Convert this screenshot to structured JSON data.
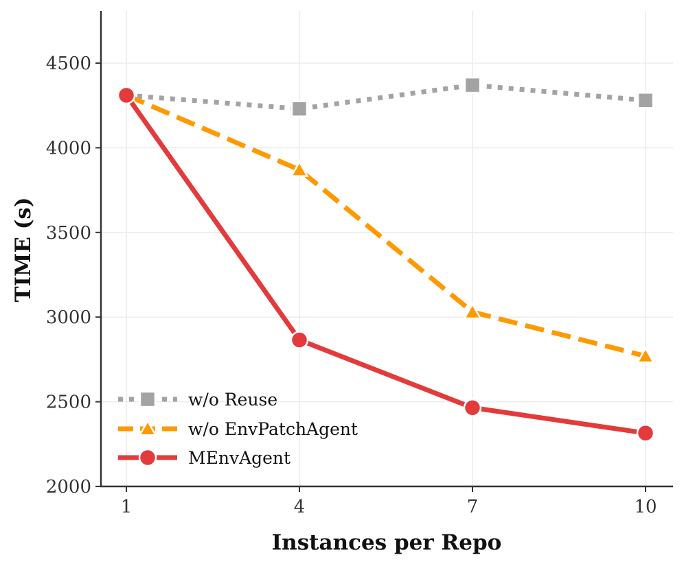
{
  "chart_data": {
    "type": "line",
    "title": "",
    "xlabel": "Instances per Repo",
    "ylabel": "TIME (s)",
    "x": [
      1,
      4,
      7,
      10
    ],
    "x_tick_labels": [
      "1",
      "4",
      "7",
      "10"
    ],
    "ylim": [
      2000,
      4800
    ],
    "y_ticks": [
      2000,
      2500,
      3000,
      3500,
      4000,
      4500
    ],
    "y_tick_labels": [
      "2000",
      "2500",
      "3000",
      "3500",
      "4000",
      "4500"
    ],
    "grid": true,
    "legend_position": "lower-left",
    "series": [
      {
        "name": "w/o Reuse",
        "values": [
          4310,
          4230,
          4370,
          4280
        ],
        "color": "#a3a3a3",
        "line_style": "dotted",
        "marker": "square"
      },
      {
        "name": "w/o EnvPatchAgent",
        "values": [
          4310,
          3870,
          3030,
          2770
        ],
        "color": "#ff9900",
        "line_style": "dashed",
        "marker": "triangle"
      },
      {
        "name": "MEnvAgent",
        "values": [
          4310,
          2865,
          2465,
          2315
        ],
        "color": "#e33b3b",
        "line_style": "solid",
        "marker": "circle"
      }
    ]
  }
}
